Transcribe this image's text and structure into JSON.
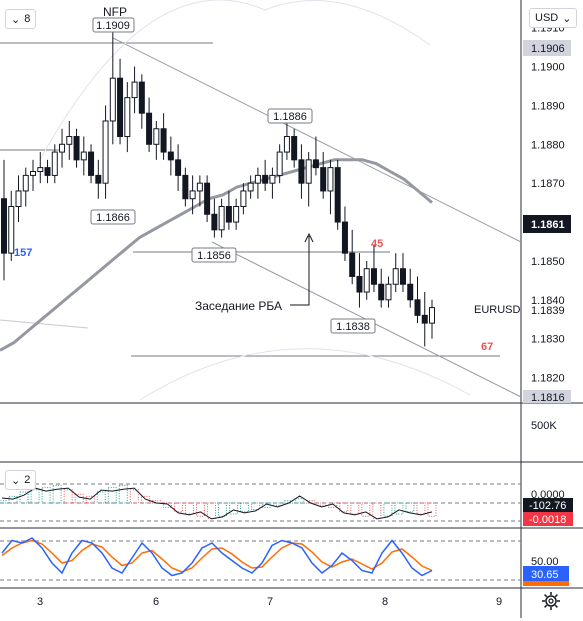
{
  "chart_data": {
    "type": "candlestick",
    "symbol": "EURUSD",
    "currency": "USD",
    "collapse_count": "8",
    "price_axis": {
      "ticks": [
        "1.1910",
        "1.1900",
        "1.1890",
        "1.1880",
        "1.1870",
        "1.1860",
        "1.1850",
        "1.1840",
        "1.1830",
        "1.1820"
      ],
      "range": [
        1.1815,
        1.1913
      ],
      "badge_top": "1.1906",
      "badge_current": "1.1861",
      "badge_last": "1.1839",
      "badge_bottom": "1.1816"
    },
    "x_axis": {
      "ticks": [
        "3",
        "6",
        "7",
        "8",
        "9"
      ]
    },
    "annotations": {
      "event_label": "NFP",
      "rba_label": "Заседание РБА",
      "price_labels": [
        "1.1909",
        "1.1866",
        "1.1886",
        "1.1856",
        "1.1838"
      ],
      "left_count": "157",
      "count_45": "45",
      "count_67": "67"
    },
    "volume_label": "500K",
    "indicator1": {
      "collapse_count": "2",
      "tick": "0.0000",
      "value_dark": "-102.76",
      "value_red": "-0.0018"
    },
    "indicator2": {
      "tick": "50.00",
      "value": "30.65"
    },
    "ohlc": [
      [
        1.1866,
        1.1876,
        1.1845,
        1.1852
      ],
      [
        1.1852,
        1.1868,
        1.185,
        1.1864
      ],
      [
        1.1864,
        1.1872,
        1.186,
        1.1868
      ],
      [
        1.1868,
        1.1874,
        1.1864,
        1.1872
      ],
      [
        1.1872,
        1.1876,
        1.1868,
        1.1873
      ],
      [
        1.1873,
        1.1878,
        1.187,
        1.1874
      ],
      [
        1.1874,
        1.1876,
        1.187,
        1.1872
      ],
      [
        1.1872,
        1.188,
        1.187,
        1.1878
      ],
      [
        1.1878,
        1.1884,
        1.1874,
        1.188
      ],
      [
        1.188,
        1.1886,
        1.1876,
        1.1882
      ],
      [
        1.1882,
        1.1884,
        1.1874,
        1.1876
      ],
      [
        1.1876,
        1.1882,
        1.1872,
        1.1878
      ],
      [
        1.1878,
        1.188,
        1.187,
        1.1872
      ],
      [
        1.1872,
        1.1876,
        1.1866,
        1.187
      ],
      [
        1.187,
        1.189,
        1.1866,
        1.1886
      ],
      [
        1.1886,
        1.1909,
        1.188,
        1.1897
      ],
      [
        1.1897,
        1.1902,
        1.188,
        1.1882
      ],
      [
        1.1882,
        1.1896,
        1.1878,
        1.1892
      ],
      [
        1.1892,
        1.19,
        1.1888,
        1.1896
      ],
      [
        1.1896,
        1.1898,
        1.1884,
        1.1888
      ],
      [
        1.1888,
        1.1892,
        1.1878,
        1.188
      ],
      [
        1.188,
        1.1886,
        1.1876,
        1.1884
      ],
      [
        1.1884,
        1.1888,
        1.1876,
        1.1878
      ],
      [
        1.1878,
        1.1882,
        1.1872,
        1.1876
      ],
      [
        1.1876,
        1.188,
        1.1868,
        1.1872
      ],
      [
        1.1872,
        1.1874,
        1.1864,
        1.1866
      ],
      [
        1.1866,
        1.1872,
        1.1862,
        1.1868
      ],
      [
        1.1868,
        1.1872,
        1.1864,
        1.187
      ],
      [
        1.187,
        1.1872,
        1.186,
        1.1862
      ],
      [
        1.1862,
        1.1866,
        1.1856,
        1.1858
      ],
      [
        1.1858,
        1.1866,
        1.1856,
        1.1864
      ],
      [
        1.1864,
        1.1868,
        1.1858,
        1.186
      ],
      [
        1.186,
        1.1866,
        1.1858,
        1.1864
      ],
      [
        1.1864,
        1.187,
        1.1862,
        1.1868
      ],
      [
        1.1868,
        1.1872,
        1.1866,
        1.187
      ],
      [
        1.187,
        1.1874,
        1.1866,
        1.1872
      ],
      [
        1.1872,
        1.1876,
        1.1868,
        1.187
      ],
      [
        1.187,
        1.1874,
        1.1866,
        1.1872
      ],
      [
        1.1872,
        1.188,
        1.187,
        1.1878
      ],
      [
        1.1878,
        1.1886,
        1.1876,
        1.1882
      ],
      [
        1.1882,
        1.1884,
        1.1874,
        1.1876
      ],
      [
        1.1876,
        1.188,
        1.1866,
        1.187
      ],
      [
        1.187,
        1.1878,
        1.1864,
        1.1876
      ],
      [
        1.1876,
        1.1882,
        1.1872,
        1.1874
      ],
      [
        1.1874,
        1.1878,
        1.1866,
        1.1868
      ],
      [
        1.1868,
        1.1876,
        1.1862,
        1.1874
      ],
      [
        1.1874,
        1.1876,
        1.1858,
        1.186
      ],
      [
        1.186,
        1.1864,
        1.185,
        1.1852
      ],
      [
        1.1852,
        1.1858,
        1.1844,
        1.1846
      ],
      [
        1.1846,
        1.1852,
        1.1838,
        1.1842
      ],
      [
        1.1842,
        1.185,
        1.184,
        1.1848
      ],
      [
        1.1848,
        1.1854,
        1.1842,
        1.1844
      ],
      [
        1.1844,
        1.1848,
        1.1838,
        1.184
      ],
      [
        1.184,
        1.1846,
        1.1838,
        1.1844
      ],
      [
        1.1844,
        1.1852,
        1.1842,
        1.1848
      ],
      [
        1.1848,
        1.1852,
        1.1842,
        1.1844
      ],
      [
        1.1844,
        1.1848,
        1.1838,
        1.184
      ],
      [
        1.184,
        1.1846,
        1.1834,
        1.1836
      ],
      [
        1.1836,
        1.1842,
        1.1828,
        1.1834
      ],
      [
        1.1834,
        1.184,
        1.183,
        1.1838
      ]
    ],
    "ma": [
      1.1827,
      1.1829,
      1.1832,
      1.1835,
      1.1838,
      1.1841,
      1.1844,
      1.1847,
      1.185,
      1.1853,
      1.1856,
      1.1858,
      1.186,
      1.1862,
      1.1864,
      1.1866,
      1.1867,
      1.1869,
      1.187,
      1.1871,
      1.1872,
      1.1873,
      1.1874,
      1.1875,
      1.1876,
      1.1876,
      1.1876,
      1.1875,
      1.1873,
      1.1871,
      1.1868,
      1.1865
    ],
    "osc1": [
      0.1,
      0.3,
      0.5,
      0.6,
      0.7,
      0.8,
      0.6,
      0.4,
      0.3,
      0.5,
      0.7,
      0.8,
      0.6,
      0.3,
      0.1,
      -0.2,
      -0.4,
      -0.5,
      -0.6,
      -0.7,
      -0.6,
      -0.5,
      -0.4,
      -0.3,
      -0.2,
      -0.1,
      0.1,
      0.2,
      0.1,
      -0.1,
      -0.2,
      -0.4,
      -0.5,
      -0.6,
      -0.7,
      -0.6,
      -0.5,
      -0.4,
      -0.5,
      -0.6
    ],
    "stoch_k": [
      60,
      85,
      80,
      90,
      70,
      40,
      20,
      60,
      85,
      80,
      60,
      30,
      20,
      50,
      80,
      60,
      30,
      15,
      20,
      40,
      70,
      80,
      60,
      45,
      30,
      20,
      40,
      75,
      85,
      80,
      70,
      40,
      20,
      35,
      60,
      45,
      25,
      20,
      60,
      85,
      60,
      30,
      15,
      25
    ],
    "stoch_d": [
      55,
      70,
      80,
      85,
      78,
      60,
      40,
      45,
      65,
      78,
      72,
      52,
      35,
      40,
      60,
      65,
      48,
      30,
      22,
      30,
      50,
      68,
      70,
      58,
      42,
      30,
      32,
      52,
      70,
      80,
      78,
      62,
      42,
      32,
      42,
      48,
      38,
      28,
      40,
      62,
      68,
      52,
      34,
      25
    ]
  }
}
